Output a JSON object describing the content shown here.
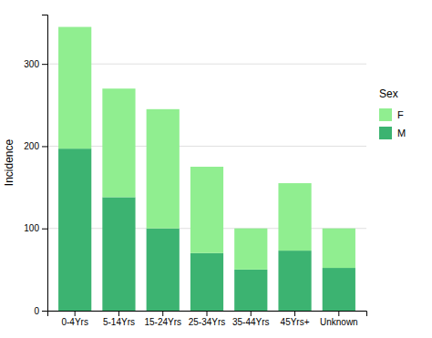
{
  "chart_data": {
    "type": "bar",
    "stacked": true,
    "categories": [
      "0-4Yrs",
      "5-14Yrs",
      "15-24Yrs",
      "25-34Yrs",
      "35-44Yrs",
      "45Yrs+",
      "Unknown"
    ],
    "series": [
      {
        "name": "M",
        "color": "#3cb371",
        "values": [
          197,
          138,
          100,
          70,
          50,
          73,
          52
        ]
      },
      {
        "name": "F",
        "color": "#90EE90",
        "values": [
          148,
          132,
          145,
          105,
          50,
          82,
          48
        ]
      }
    ],
    "ylabel": "Incidence",
    "legend_title": "Sex",
    "legend": "right",
    "ylim": [
      0,
      360
    ],
    "yticks": [
      0,
      100,
      200,
      300
    ],
    "grid": true
  }
}
